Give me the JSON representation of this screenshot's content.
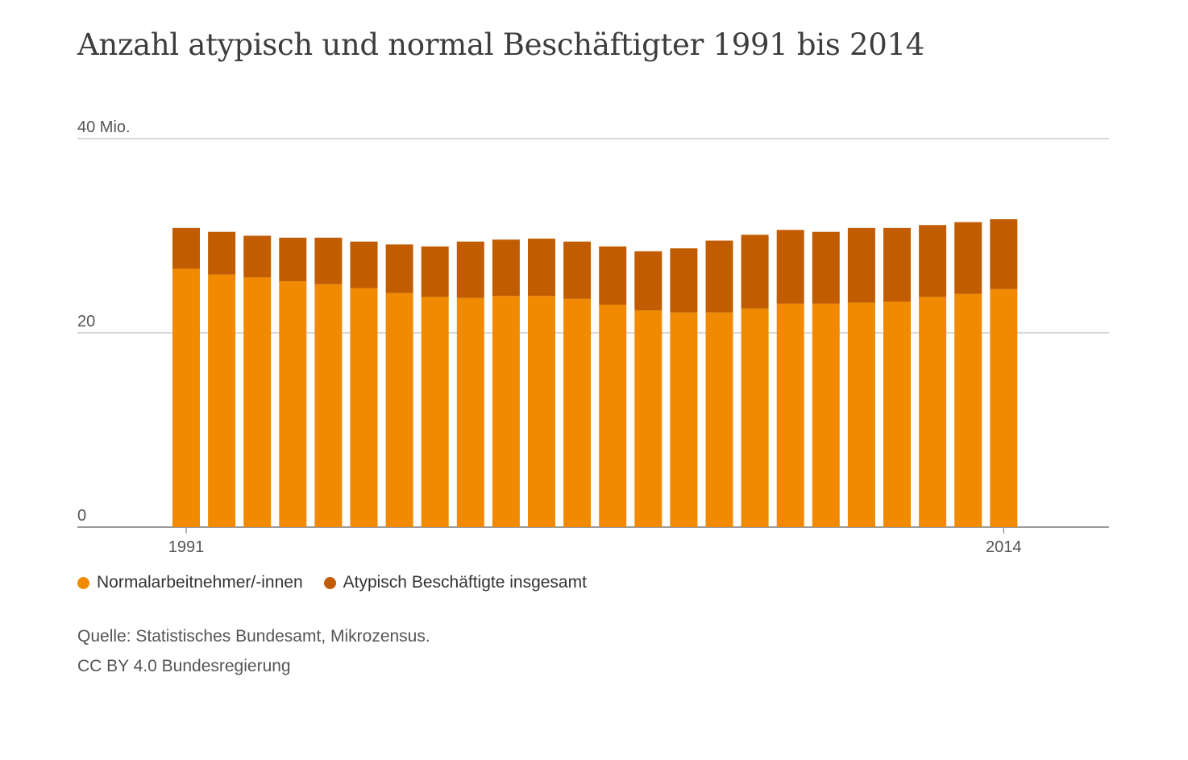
{
  "title": "Anzahl atypisch und normal Beschäftigter 1991 bis 2014",
  "legend": {
    "items": [
      {
        "label": "Normalarbeitnehmer/-innen",
        "color": "#f18a00"
      },
      {
        "label": "Atypisch Beschäftigte insgesamt",
        "color": "#c15d00"
      }
    ]
  },
  "source": {
    "line1": "Quelle: Statistisches Bundesamt, Mikrozensus.",
    "line2": "CC BY 4.0 Bundesregierung"
  },
  "chart_data": {
    "type": "bar",
    "stacked": true,
    "title": "Anzahl atypisch und normal Beschäftigter 1991 bis 2014",
    "xlabel": "",
    "ylabel": "",
    "ylim": [
      0,
      40
    ],
    "y_ticks": [
      {
        "value": 0,
        "label": "0"
      },
      {
        "value": 20,
        "label": "20"
      },
      {
        "value": 40,
        "label": "40 Mio."
      }
    ],
    "x_tick_labels": [
      {
        "category": "1991",
        "label": "1991"
      },
      {
        "category": "2014",
        "label": "2014"
      }
    ],
    "grid": true,
    "legend_position": "bottom-left",
    "categories": [
      "1991",
      "1992",
      "1993",
      "1994",
      "1995",
      "1996",
      "1997",
      "1998",
      "1999",
      "2000",
      "2001",
      "2002",
      "2003",
      "2004",
      "2005",
      "2006",
      "2007",
      "2008",
      "2009",
      "2010",
      "2011",
      "2012",
      "2013",
      "2014"
    ],
    "series": [
      {
        "name": "Normalarbeitnehmer/-innen",
        "color": "#f18a00",
        "values": [
          26.6,
          26.0,
          25.7,
          25.3,
          25.0,
          24.6,
          24.1,
          23.7,
          23.6,
          23.8,
          23.8,
          23.5,
          22.9,
          22.3,
          22.1,
          22.1,
          22.5,
          23.0,
          23.0,
          23.1,
          23.2,
          23.7,
          24.0,
          24.5
        ],
        "display_totals": [
          30.8,
          30.4,
          30.0,
          29.8,
          29.8,
          29.4,
          29.1,
          28.9,
          29.4,
          29.6,
          29.7,
          29.4,
          28.9,
          28.4,
          28.7,
          29.5,
          30.1,
          30.6,
          30.4,
          30.8,
          30.8,
          31.1,
          31.4,
          31.7
        ]
      },
      {
        "name": "Atypisch Beschäftigte insgesamt",
        "color": "#c15d00",
        "values": [
          4.2,
          4.4,
          4.3,
          4.5,
          4.8,
          4.8,
          5.0,
          5.2,
          5.8,
          5.8,
          5.9,
          5.9,
          6.0,
          6.1,
          6.6,
          7.4,
          7.6,
          7.6,
          7.4,
          7.7,
          7.6,
          7.4,
          7.4,
          7.2
        ]
      }
    ]
  }
}
